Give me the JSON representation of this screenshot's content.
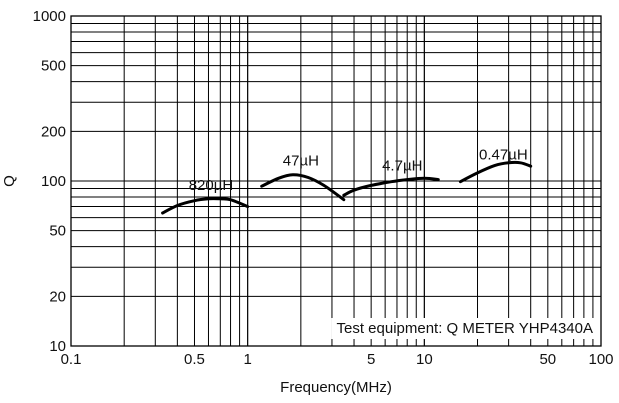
{
  "chart_data": {
    "type": "line",
    "title": "",
    "xlabel": "Frequency(MHz)",
    "ylabel": "Q",
    "xscale": "log",
    "yscale": "log",
    "xlim": [
      0.1,
      100
    ],
    "ylim": [
      10,
      1000
    ],
    "grid": true,
    "x_tick_labels": [
      "0.1",
      "0.5",
      "1",
      "5",
      "10",
      "50",
      "100"
    ],
    "x_tick_values": [
      0.1,
      0.5,
      1,
      5,
      10,
      50,
      100
    ],
    "y_tick_labels": [
      "10",
      "20",
      "50",
      "100",
      "200",
      "500",
      "1000"
    ],
    "y_tick_values": [
      10,
      20,
      50,
      100,
      200,
      500,
      1000
    ],
    "annotation": "Test equipment: Q METER YHP4340A",
    "line_color": "#000000",
    "series": [
      {
        "name": "820µH",
        "x": [
          0.33,
          0.4,
          0.5,
          0.6,
          0.7,
          0.8,
          1.0
        ],
        "y": [
          64,
          71,
          76,
          78,
          78,
          77,
          70
        ]
      },
      {
        "name": "47µH",
        "x": [
          1.2,
          1.5,
          1.8,
          2.2,
          2.7,
          3.5
        ],
        "y": [
          93,
          104,
          109,
          105,
          94,
          77
        ]
      },
      {
        "name": "4.7µH",
        "x": [
          3.5,
          4.0,
          5.0,
          6.5,
          8.0,
          10.0,
          12.0
        ],
        "y": [
          82,
          88,
          94,
          99,
          102,
          104,
          102
        ]
      },
      {
        "name": "0.47µH",
        "x": [
          16,
          20,
          25,
          30,
          35,
          40
        ],
        "y": [
          99,
          112,
          124,
          129,
          129,
          123
        ]
      }
    ],
    "label_positions_x": [
      0.62,
      2.0,
      7.5,
      28
    ],
    "label_positions_y": [
      88,
      124,
      116,
      135
    ]
  }
}
